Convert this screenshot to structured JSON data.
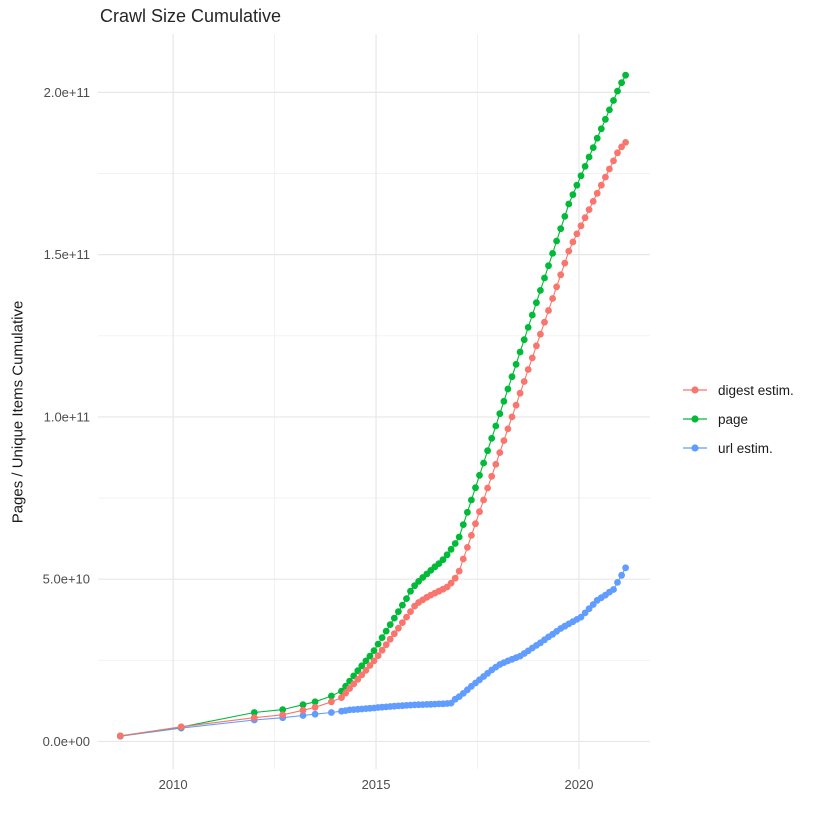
{
  "title": "Crawl Size Cumulative",
  "legend": {
    "items": [
      {
        "label": "digest estim.",
        "color": "#F8766D"
      },
      {
        "label": "page",
        "color": "#00BA38"
      },
      {
        "label": "url estim.",
        "color": "#619CFF"
      }
    ]
  },
  "colors": {
    "grid_major": "#E7E7E7",
    "grid_minor": "#F1F1F1",
    "axis_text": "#4D4D4D",
    "title_text": "#262626"
  },
  "chart_data": {
    "type": "scatter",
    "title": "Crawl Size Cumulative",
    "xlabel": "",
    "ylabel": "Pages / Unique Items Cumulative",
    "legend_position": "right",
    "grid": "on",
    "value_unit": "pages (value × 1e9)",
    "xlim": [
      2008.15,
      2021.75
    ],
    "ylim_e9": [
      -8.5,
      218
    ],
    "x_ticks": [
      {
        "label": "2010",
        "value": 2010
      },
      {
        "label": "2015",
        "value": 2015
      },
      {
        "label": "2020",
        "value": 2020
      }
    ],
    "x_minor": [
      2012.5,
      2017.5
    ],
    "y_ticks": [
      {
        "label": "0.0e+00",
        "value": 0
      },
      {
        "label": "5.0e+10",
        "value": 50
      },
      {
        "label": "1.0e+11",
        "value": 100
      },
      {
        "label": "1.5e+11",
        "value": 150
      },
      {
        "label": "2.0e+11",
        "value": 200
      }
    ],
    "y_minor": [
      25,
      75,
      125,
      175
    ],
    "series": [
      {
        "name": "digest estim.",
        "color": "#F8766D",
        "points": [
          [
            2008.7,
            1.7
          ],
          [
            2010.2,
            4.5
          ],
          [
            2012.0,
            7.3
          ],
          [
            2012.7,
            8.2
          ],
          [
            2013.2,
            9.6
          ],
          [
            2013.5,
            10.5
          ],
          [
            2013.9,
            12.2
          ],
          [
            2014.15,
            13.5
          ],
          [
            2014.25,
            14.9
          ],
          [
            2014.35,
            16.3
          ],
          [
            2014.45,
            17.7
          ],
          [
            2014.55,
            19.1
          ],
          [
            2014.65,
            20.5
          ],
          [
            2014.75,
            21.9
          ],
          [
            2014.85,
            23.4
          ],
          [
            2014.95,
            24.8
          ],
          [
            2015.05,
            26.4
          ],
          [
            2015.15,
            28.1
          ],
          [
            2015.25,
            29.8
          ],
          [
            2015.35,
            31.5
          ],
          [
            2015.45,
            33.2
          ],
          [
            2015.55,
            34.9
          ],
          [
            2015.65,
            36.6
          ],
          [
            2015.75,
            38.3
          ],
          [
            2015.85,
            40.0
          ],
          [
            2015.95,
            41.7
          ],
          [
            2016.05,
            42.8
          ],
          [
            2016.15,
            43.6
          ],
          [
            2016.25,
            44.4
          ],
          [
            2016.35,
            45.1
          ],
          [
            2016.45,
            45.7
          ],
          [
            2016.55,
            46.3
          ],
          [
            2016.65,
            46.9
          ],
          [
            2016.75,
            47.6
          ],
          [
            2016.85,
            48.8
          ],
          [
            2016.95,
            50.3
          ],
          [
            2017.05,
            52.5
          ],
          [
            2017.15,
            56.2
          ],
          [
            2017.25,
            59.8
          ],
          [
            2017.35,
            63.5
          ],
          [
            2017.45,
            67.1
          ],
          [
            2017.55,
            70.8
          ],
          [
            2017.65,
            74.4
          ],
          [
            2017.75,
            78.1
          ],
          [
            2017.85,
            81.7
          ],
          [
            2017.95,
            85.4
          ],
          [
            2018.05,
            89.0
          ],
          [
            2018.15,
            92.7
          ],
          [
            2018.25,
            96.3
          ],
          [
            2018.35,
            100.0
          ],
          [
            2018.45,
            103.6
          ],
          [
            2018.55,
            107.3
          ],
          [
            2018.65,
            110.9
          ],
          [
            2018.75,
            114.6
          ],
          [
            2018.85,
            118.2
          ],
          [
            2018.95,
            121.9
          ],
          [
            2019.05,
            125.5
          ],
          [
            2019.15,
            129.2
          ],
          [
            2019.25,
            132.8
          ],
          [
            2019.35,
            136.5
          ],
          [
            2019.45,
            140.1
          ],
          [
            2019.55,
            143.8
          ],
          [
            2019.65,
            147.4
          ],
          [
            2019.75,
            151.1
          ],
          [
            2019.85,
            153.9
          ],
          [
            2019.95,
            156.4
          ],
          [
            2020.05,
            158.9
          ],
          [
            2020.15,
            161.4
          ],
          [
            2020.25,
            163.9
          ],
          [
            2020.35,
            166.4
          ],
          [
            2020.45,
            168.9
          ],
          [
            2020.55,
            171.4
          ],
          [
            2020.65,
            173.9
          ],
          [
            2020.75,
            176.4
          ],
          [
            2020.85,
            178.9
          ],
          [
            2020.95,
            181.4
          ],
          [
            2021.05,
            183.2
          ],
          [
            2021.15,
            184.6
          ]
        ]
      },
      {
        "name": "page",
        "color": "#00BA38",
        "points": [
          [
            2008.7,
            1.7
          ],
          [
            2010.2,
            4.4
          ],
          [
            2012.0,
            8.9
          ],
          [
            2012.7,
            9.8
          ],
          [
            2013.2,
            11.3
          ],
          [
            2013.5,
            12.2
          ],
          [
            2013.9,
            14.0
          ],
          [
            2014.15,
            15.5
          ],
          [
            2014.25,
            17.0
          ],
          [
            2014.35,
            18.6
          ],
          [
            2014.45,
            20.2
          ],
          [
            2014.55,
            21.8
          ],
          [
            2014.65,
            23.3
          ],
          [
            2014.75,
            24.8
          ],
          [
            2014.85,
            26.3
          ],
          [
            2014.95,
            28.0
          ],
          [
            2015.05,
            30.0
          ],
          [
            2015.15,
            32.0
          ],
          [
            2015.25,
            34.0
          ],
          [
            2015.35,
            36.0
          ],
          [
            2015.45,
            38.0
          ],
          [
            2015.55,
            40.0
          ],
          [
            2015.65,
            42.0
          ],
          [
            2015.75,
            44.0
          ],
          [
            2015.85,
            46.3
          ],
          [
            2015.95,
            48.0
          ],
          [
            2016.05,
            49.3
          ],
          [
            2016.15,
            50.5
          ],
          [
            2016.25,
            51.6
          ],
          [
            2016.35,
            52.7
          ],
          [
            2016.45,
            53.8
          ],
          [
            2016.55,
            54.8
          ],
          [
            2016.65,
            56.0
          ],
          [
            2016.75,
            57.5
          ],
          [
            2016.85,
            59.2
          ],
          [
            2016.95,
            61.0
          ],
          [
            2017.05,
            63.0
          ],
          [
            2017.15,
            66.8
          ],
          [
            2017.25,
            70.6
          ],
          [
            2017.35,
            74.4
          ],
          [
            2017.45,
            78.2
          ],
          [
            2017.55,
            82.0
          ],
          [
            2017.65,
            85.8
          ],
          [
            2017.75,
            89.6
          ],
          [
            2017.85,
            93.4
          ],
          [
            2017.95,
            97.2
          ],
          [
            2018.05,
            101.0
          ],
          [
            2018.15,
            104.8
          ],
          [
            2018.25,
            108.6
          ],
          [
            2018.35,
            112.4
          ],
          [
            2018.45,
            116.2
          ],
          [
            2018.55,
            120.0
          ],
          [
            2018.65,
            123.8
          ],
          [
            2018.75,
            127.6
          ],
          [
            2018.85,
            131.4
          ],
          [
            2018.95,
            135.2
          ],
          [
            2019.05,
            139.0
          ],
          [
            2019.15,
            142.8
          ],
          [
            2019.25,
            146.6
          ],
          [
            2019.35,
            150.4
          ],
          [
            2019.45,
            154.2
          ],
          [
            2019.55,
            158.0
          ],
          [
            2019.65,
            161.8
          ],
          [
            2019.75,
            165.6
          ],
          [
            2019.85,
            168.5
          ],
          [
            2019.95,
            171.4
          ],
          [
            2020.05,
            174.3
          ],
          [
            2020.15,
            177.2
          ],
          [
            2020.25,
            180.1
          ],
          [
            2020.35,
            183.0
          ],
          [
            2020.45,
            185.9
          ],
          [
            2020.55,
            188.8
          ],
          [
            2020.65,
            191.7
          ],
          [
            2020.75,
            194.6
          ],
          [
            2020.85,
            197.5
          ],
          [
            2020.95,
            200.4
          ],
          [
            2021.05,
            203.0
          ],
          [
            2021.15,
            205.3
          ]
        ]
      },
      {
        "name": "url estim.",
        "color": "#619CFF",
        "points": [
          [
            2008.7,
            1.6
          ],
          [
            2010.2,
            4.1
          ],
          [
            2012.0,
            6.6
          ],
          [
            2012.7,
            7.3
          ],
          [
            2013.2,
            8.0
          ],
          [
            2013.5,
            8.4
          ],
          [
            2013.9,
            8.9
          ],
          [
            2014.15,
            9.3
          ],
          [
            2014.25,
            9.5
          ],
          [
            2014.35,
            9.7
          ],
          [
            2014.45,
            9.8
          ],
          [
            2014.55,
            9.9
          ],
          [
            2014.65,
            10.0
          ],
          [
            2014.75,
            10.1
          ],
          [
            2014.85,
            10.2
          ],
          [
            2014.95,
            10.3
          ],
          [
            2015.05,
            10.45
          ],
          [
            2015.15,
            10.55
          ],
          [
            2015.25,
            10.65
          ],
          [
            2015.35,
            10.75
          ],
          [
            2015.45,
            10.85
          ],
          [
            2015.55,
            10.95
          ],
          [
            2015.65,
            11.0
          ],
          [
            2015.75,
            11.1
          ],
          [
            2015.85,
            11.2
          ],
          [
            2015.95,
            11.25
          ],
          [
            2016.05,
            11.3
          ],
          [
            2016.15,
            11.35
          ],
          [
            2016.25,
            11.4
          ],
          [
            2016.35,
            11.45
          ],
          [
            2016.45,
            11.5
          ],
          [
            2016.55,
            11.55
          ],
          [
            2016.65,
            11.6
          ],
          [
            2016.75,
            11.7
          ],
          [
            2016.85,
            11.8
          ],
          [
            2016.95,
            13.0
          ],
          [
            2017.05,
            13.8
          ],
          [
            2017.15,
            14.8
          ],
          [
            2017.25,
            15.9
          ],
          [
            2017.35,
            17.0
          ],
          [
            2017.45,
            18.0
          ],
          [
            2017.55,
            19.0
          ],
          [
            2017.65,
            20.0
          ],
          [
            2017.75,
            21.0
          ],
          [
            2017.85,
            22.0
          ],
          [
            2017.95,
            22.9
          ],
          [
            2018.05,
            23.7
          ],
          [
            2018.15,
            24.3
          ],
          [
            2018.25,
            24.8
          ],
          [
            2018.35,
            25.3
          ],
          [
            2018.45,
            25.8
          ],
          [
            2018.55,
            26.3
          ],
          [
            2018.65,
            27.1
          ],
          [
            2018.75,
            27.9
          ],
          [
            2018.85,
            28.8
          ],
          [
            2018.95,
            29.6
          ],
          [
            2019.05,
            30.4
          ],
          [
            2019.15,
            31.3
          ],
          [
            2019.25,
            32.2
          ],
          [
            2019.35,
            33.0
          ],
          [
            2019.45,
            33.9
          ],
          [
            2019.55,
            34.8
          ],
          [
            2019.65,
            35.5
          ],
          [
            2019.75,
            36.2
          ],
          [
            2019.85,
            36.9
          ],
          [
            2019.95,
            37.6
          ],
          [
            2020.05,
            38.3
          ],
          [
            2020.15,
            39.6
          ],
          [
            2020.25,
            40.9
          ],
          [
            2020.35,
            42.2
          ],
          [
            2020.45,
            43.5
          ],
          [
            2020.55,
            44.3
          ],
          [
            2020.65,
            45.1
          ],
          [
            2020.75,
            46.0
          ],
          [
            2020.85,
            46.8
          ],
          [
            2020.95,
            49.0
          ],
          [
            2021.05,
            51.2
          ],
          [
            2021.15,
            53.5
          ]
        ]
      }
    ]
  }
}
